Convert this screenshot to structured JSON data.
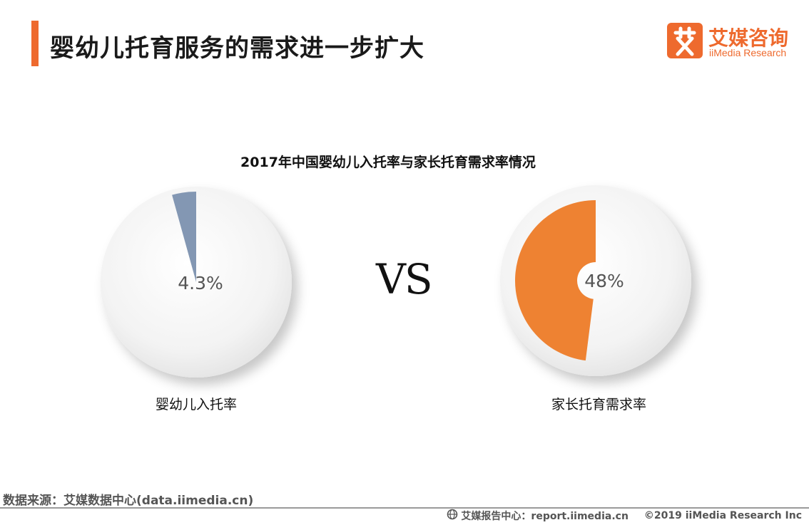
{
  "header": {
    "title": "婴幼儿托育服务的需求进一步扩大"
  },
  "logo": {
    "glyph": "艾",
    "cn": "艾媒咨询",
    "en": "iiMedia Research"
  },
  "colors": {
    "accent": "#ee6a2e",
    "slice_left": "#8397b3",
    "slice_right": "#ee8232"
  },
  "chart_data": {
    "type": "pie",
    "title": "2017年中国婴幼儿入托率与家长托育需求率情况",
    "separator": "VS",
    "pies": [
      {
        "name": "婴幼儿入托率",
        "value": 4.3,
        "label": "4.3%"
      },
      {
        "name": "家长托育需求率",
        "value": 48,
        "label": "48%"
      }
    ]
  },
  "footer": {
    "source": "数据来源：艾媒数据中心(data.iimedia.cn)",
    "report": "艾媒报告中心：report.iimedia.cn",
    "copyright": "©2019  iiMedia Research  Inc"
  }
}
